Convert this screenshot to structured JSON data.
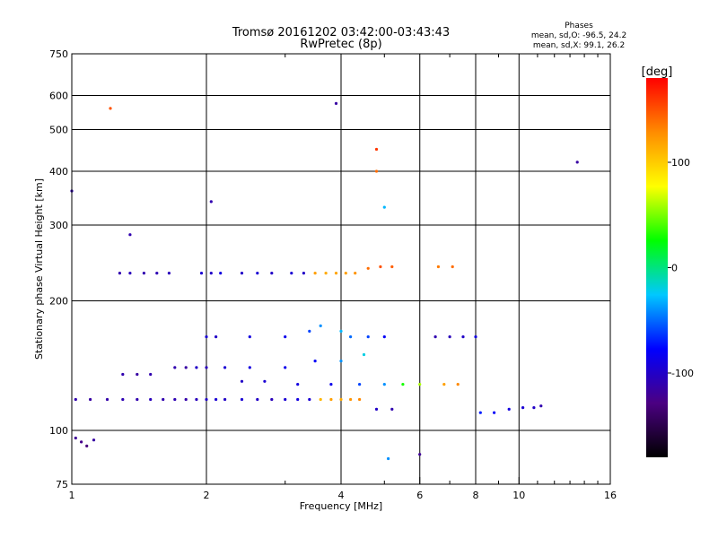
{
  "chart_data": {
    "type": "scatter",
    "title": "Tromsø 20161202 03:42:00-03:43:43",
    "subtitle": "RwPretec (8p)",
    "xlabel": "Frequency [MHz]",
    "ylabel": "Stationary phase Virtual Height [km]",
    "x_scale": "log",
    "y_scale": "log",
    "xlim": [
      1,
      16
    ],
    "ylim": [
      75,
      750
    ],
    "x_ticks": [
      1,
      2,
      4,
      6,
      8,
      10,
      16
    ],
    "x_minor_ticks": [
      3,
      5,
      7,
      9,
      11,
      12,
      13,
      14,
      15
    ],
    "y_ticks": [
      75,
      100,
      200,
      300,
      400,
      500,
      600,
      750
    ],
    "grid": true,
    "phases_box": {
      "title": "Phases",
      "line1": "mean, sd,O: -96.5, 24.2",
      "line2": "mean, sd,X:  99.1, 26.2"
    },
    "colorbar": {
      "unit": "[deg]",
      "ticks": [
        "100",
        "0",
        "-100"
      ],
      "tick_values": [
        100,
        0,
        -100
      ],
      "range": [
        -180,
        180
      ],
      "colors": [
        "#000000",
        "#4b0082",
        "#0000ff",
        "#00c8ff",
        "#00ff00",
        "#ffff00",
        "#ff8c00",
        "#ff0000"
      ]
    },
    "series": [
      {
        "points": [
          [
            1.02,
            118,
            -110
          ],
          [
            1.1,
            118,
            -115
          ],
          [
            1.2,
            118,
            -112
          ],
          [
            1.3,
            118,
            -108
          ],
          [
            1.4,
            118,
            -110
          ],
          [
            1.5,
            118,
            -105
          ],
          [
            1.6,
            118,
            -110
          ],
          [
            1.7,
            118,
            -108
          ],
          [
            1.8,
            118,
            -112
          ],
          [
            1.9,
            118,
            -105
          ],
          [
            2.0,
            118,
            -100
          ],
          [
            2.1,
            118,
            -95
          ],
          [
            2.2,
            118,
            -100
          ],
          [
            2.4,
            118,
            -95
          ],
          [
            2.6,
            118,
            -100
          ],
          [
            2.8,
            118,
            -105
          ],
          [
            3.0,
            118,
            -95
          ],
          [
            3.2,
            118,
            -90
          ],
          [
            3.4,
            118,
            -95
          ],
          [
            3.6,
            118,
            110
          ],
          [
            3.8,
            118,
            120
          ],
          [
            4.0,
            118,
            115
          ],
          [
            4.2,
            118,
            125
          ],
          [
            4.4,
            118,
            130
          ],
          [
            1.28,
            232,
            -110
          ],
          [
            1.35,
            232,
            -105
          ],
          [
            1.45,
            232,
            -110
          ],
          [
            1.55,
            232,
            -108
          ],
          [
            1.65,
            232,
            -105
          ],
          [
            1.95,
            232,
            -95
          ],
          [
            2.05,
            232,
            -100
          ],
          [
            2.15,
            232,
            -90
          ],
          [
            2.4,
            232,
            -100
          ],
          [
            2.6,
            232,
            -95
          ],
          [
            2.8,
            232,
            -100
          ],
          [
            3.1,
            232,
            -95
          ],
          [
            3.3,
            232,
            -100
          ],
          [
            3.5,
            232,
            120
          ],
          [
            3.7,
            232,
            115
          ],
          [
            3.9,
            232,
            118
          ],
          [
            4.1,
            232,
            120
          ],
          [
            4.3,
            232,
            125
          ],
          [
            4.6,
            238,
            140
          ],
          [
            4.9,
            240,
            150
          ],
          [
            5.2,
            240,
            145
          ],
          [
            6.6,
            240,
            135
          ],
          [
            7.1,
            240,
            140
          ],
          [
            1.7,
            140,
            -110
          ],
          [
            1.8,
            140,
            -115
          ],
          [
            1.9,
            140,
            -100
          ],
          [
            2.0,
            140,
            -105
          ],
          [
            2.2,
            140,
            -95
          ],
          [
            2.5,
            140,
            -90
          ],
          [
            3.0,
            140,
            -85
          ],
          [
            3.5,
            145,
            -80
          ],
          [
            4.0,
            145,
            -40
          ],
          [
            4.5,
            150,
            -20
          ],
          [
            2.0,
            165,
            -95
          ],
          [
            2.1,
            165,
            -100
          ],
          [
            2.5,
            165,
            -90
          ],
          [
            3.0,
            165,
            -85
          ],
          [
            3.4,
            170,
            -60
          ],
          [
            3.6,
            175,
            -40
          ],
          [
            4.0,
            170,
            -30
          ],
          [
            4.2,
            165,
            -50
          ],
          [
            4.6,
            165,
            -60
          ],
          [
            5.0,
            165,
            -80
          ],
          [
            6.5,
            165,
            -110
          ],
          [
            7.0,
            165,
            -105
          ],
          [
            7.5,
            165,
            -100
          ],
          [
            8.0,
            165,
            -90
          ],
          [
            1.3,
            135,
            -110
          ],
          [
            1.4,
            135,
            -115
          ],
          [
            1.5,
            135,
            -110
          ],
          [
            2.4,
            130,
            -100
          ],
          [
            2.7,
            130,
            -95
          ],
          [
            3.2,
            128,
            -90
          ],
          [
            3.8,
            128,
            -85
          ],
          [
            4.4,
            128,
            -60
          ],
          [
            5.0,
            128,
            -40
          ],
          [
            5.5,
            128,
            30
          ],
          [
            6.0,
            128,
            60
          ],
          [
            6.8,
            128,
            120
          ],
          [
            7.3,
            128,
            130
          ],
          [
            4.8,
            112,
            -100
          ],
          [
            5.2,
            112,
            -110
          ],
          [
            8.2,
            110,
            -70
          ],
          [
            8.8,
            110,
            -80
          ],
          [
            9.5,
            112,
            -90
          ],
          [
            10.2,
            113,
            -95
          ],
          [
            10.8,
            113,
            -100
          ],
          [
            11.2,
            114,
            -110
          ],
          [
            1.02,
            96,
            -120
          ],
          [
            1.05,
            94,
            -125
          ],
          [
            1.08,
            92,
            -130
          ],
          [
            1.12,
            95,
            -115
          ],
          [
            1.0,
            360,
            -110
          ],
          [
            1.22,
            560,
            150
          ],
          [
            2.05,
            340,
            -110
          ],
          [
            3.9,
            575,
            -115
          ],
          [
            4.8,
            400,
            140
          ],
          [
            4.8,
            450,
            160
          ],
          [
            5.0,
            330,
            -30
          ],
          [
            13.5,
            420,
            -115
          ],
          [
            6.0,
            88,
            -120
          ],
          [
            5.1,
            86,
            -40
          ],
          [
            1.35,
            285,
            -110
          ]
        ]
      }
    ]
  }
}
